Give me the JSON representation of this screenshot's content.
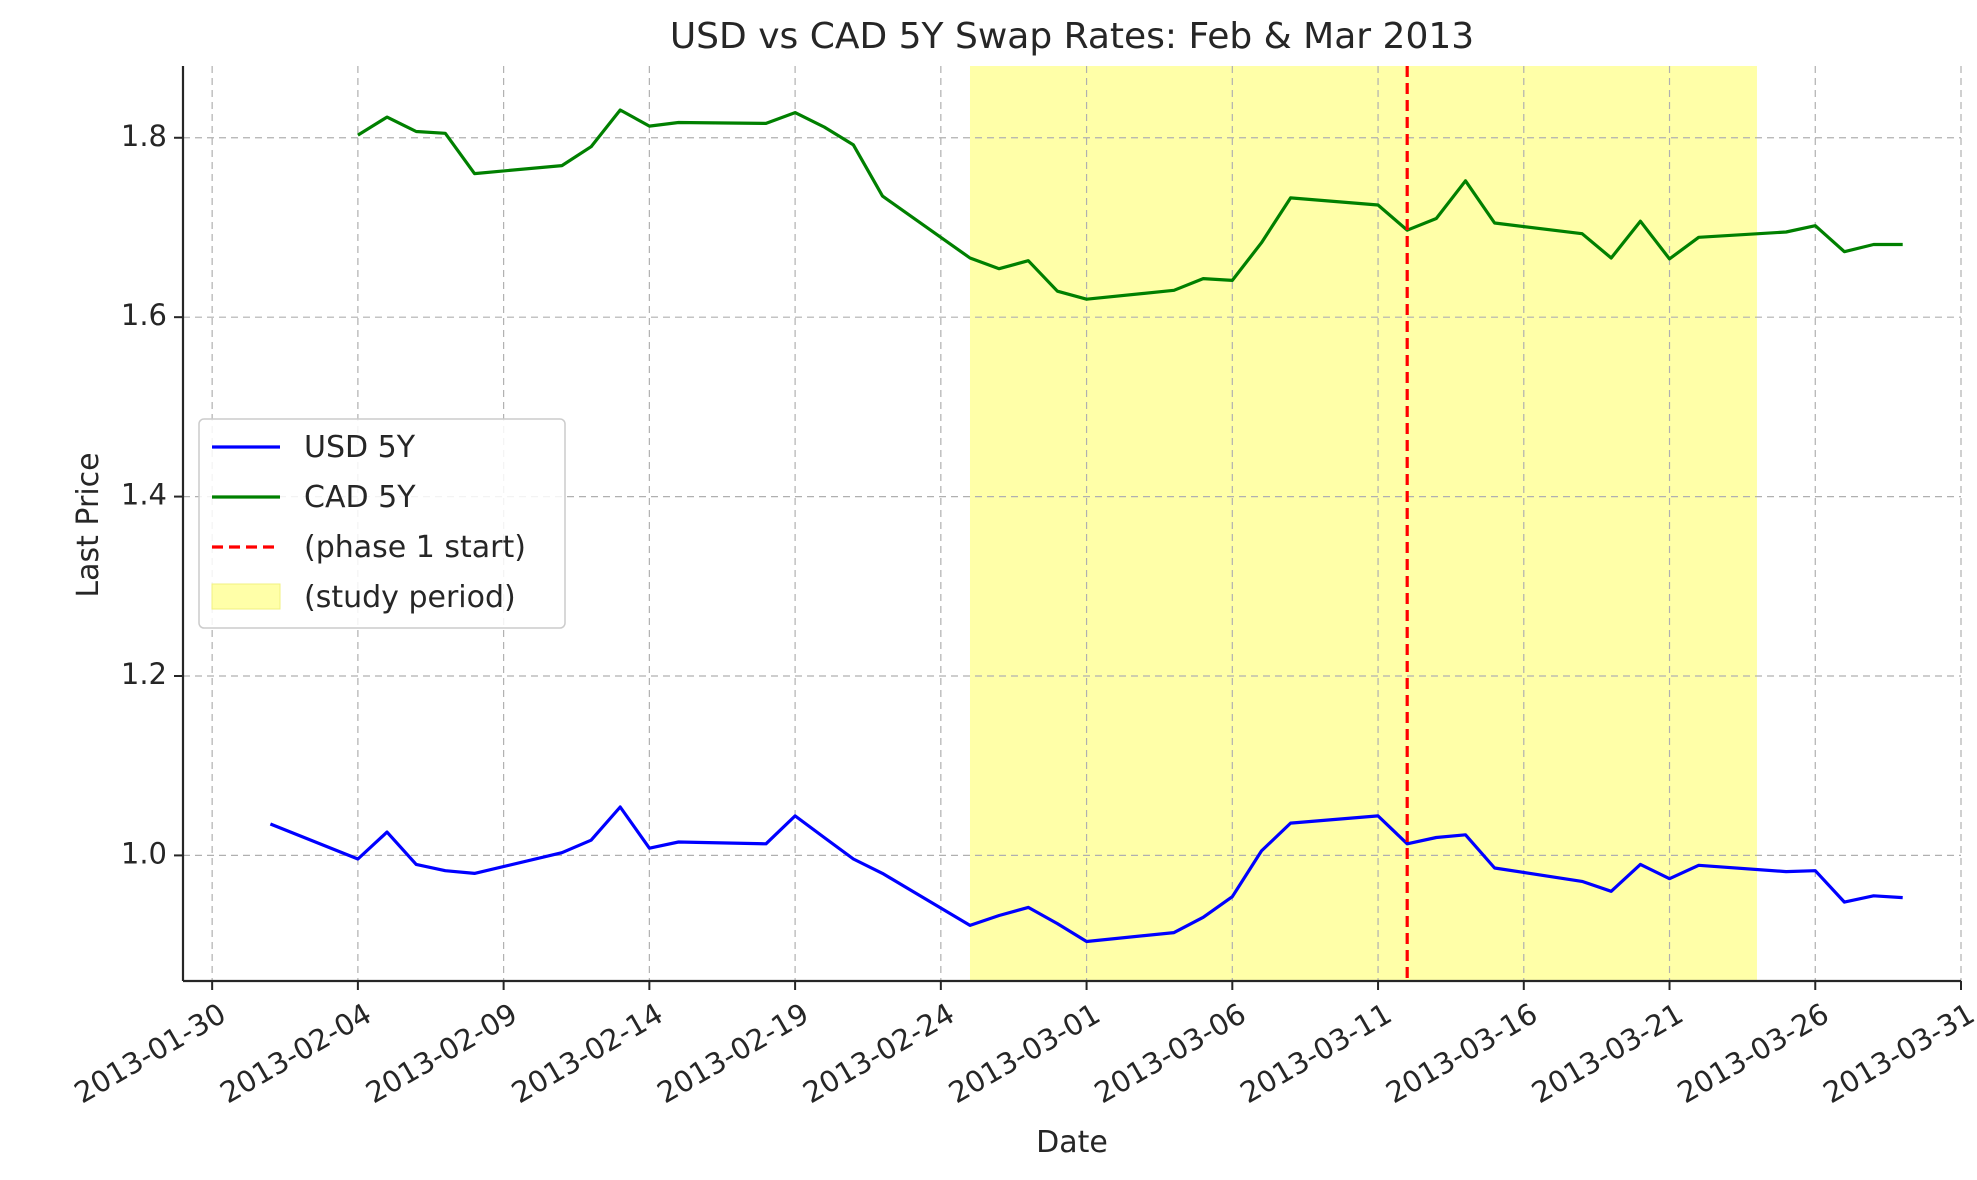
{
  "chart_data": {
    "type": "line",
    "title": "USD vs CAD 5Y Swap Rates: Feb & Mar 2013",
    "xlabel": "Date",
    "ylabel": "Last Price",
    "xlim": [
      "2013-01-29",
      "2013-03-31"
    ],
    "ylim": [
      0.86,
      1.88
    ],
    "x_ticks": [
      "2013-01-30",
      "2013-02-04",
      "2013-02-09",
      "2013-02-14",
      "2013-02-19",
      "2013-02-24",
      "2013-03-01",
      "2013-03-06",
      "2013-03-11",
      "2013-03-16",
      "2013-03-21",
      "2013-03-26",
      "2013-03-31"
    ],
    "y_ticks": [
      1.0,
      1.2,
      1.4,
      1.6,
      1.8
    ],
    "y_tick_labels": [
      "1.0",
      "1.2",
      "1.4",
      "1.6",
      "1.8"
    ],
    "grid": true,
    "legend_position": "center-left",
    "series": [
      {
        "name": "USD 5Y",
        "color": "#0000ff",
        "points": [
          [
            "2013-02-01",
            1.035
          ],
          [
            "2013-02-04",
            0.996
          ],
          [
            "2013-02-05",
            1.026
          ],
          [
            "2013-02-06",
            0.99
          ],
          [
            "2013-02-07",
            0.983
          ],
          [
            "2013-02-08",
            0.98
          ],
          [
            "2013-02-11",
            1.003
          ],
          [
            "2013-02-12",
            1.017
          ],
          [
            "2013-02-13",
            1.054
          ],
          [
            "2013-02-14",
            1.008
          ],
          [
            "2013-02-15",
            1.015
          ],
          [
            "2013-02-18",
            1.013
          ],
          [
            "2013-02-19",
            1.044
          ],
          [
            "2013-02-20",
            1.02
          ],
          [
            "2013-02-21",
            0.996
          ],
          [
            "2013-02-22",
            0.98
          ],
          [
            "2013-02-25",
            0.922
          ],
          [
            "2013-02-26",
            0.933
          ],
          [
            "2013-02-27",
            0.942
          ],
          [
            "2013-02-28",
            0.924
          ],
          [
            "2013-03-01",
            0.904
          ],
          [
            "2013-03-04",
            0.914
          ],
          [
            "2013-03-05",
            0.931
          ],
          [
            "2013-03-06",
            0.954
          ],
          [
            "2013-03-07",
            1.005
          ],
          [
            "2013-03-08",
            1.036
          ],
          [
            "2013-03-11",
            1.044
          ],
          [
            "2013-03-12",
            1.013
          ],
          [
            "2013-03-13",
            1.02
          ],
          [
            "2013-03-14",
            1.023
          ],
          [
            "2013-03-15",
            0.986
          ],
          [
            "2013-03-18",
            0.971
          ],
          [
            "2013-03-19",
            0.96
          ],
          [
            "2013-03-20",
            0.99
          ],
          [
            "2013-03-21",
            0.974
          ],
          [
            "2013-03-22",
            0.989
          ],
          [
            "2013-03-25",
            0.982
          ],
          [
            "2013-03-26",
            0.983
          ],
          [
            "2013-03-27",
            0.948
          ],
          [
            "2013-03-28",
            0.955
          ],
          [
            "2013-03-29",
            0.953
          ]
        ]
      },
      {
        "name": "CAD 5Y",
        "color": "#008000",
        "points": [
          [
            "2013-02-04",
            1.803
          ],
          [
            "2013-02-05",
            1.823
          ],
          [
            "2013-02-06",
            1.807
          ],
          [
            "2013-02-07",
            1.805
          ],
          [
            "2013-02-08",
            1.76
          ],
          [
            "2013-02-11",
            1.769
          ],
          [
            "2013-02-12",
            1.79
          ],
          [
            "2013-02-13",
            1.831
          ],
          [
            "2013-02-14",
            1.813
          ],
          [
            "2013-02-15",
            1.817
          ],
          [
            "2013-02-18",
            1.816
          ],
          [
            "2013-02-19",
            1.828
          ],
          [
            "2013-02-20",
            1.812
          ],
          [
            "2013-02-21",
            1.792
          ],
          [
            "2013-02-22",
            1.735
          ],
          [
            "2013-02-25",
            1.666
          ],
          [
            "2013-02-26",
            1.654
          ],
          [
            "2013-02-27",
            1.663
          ],
          [
            "2013-02-28",
            1.629
          ],
          [
            "2013-03-01",
            1.62
          ],
          [
            "2013-03-04",
            1.63
          ],
          [
            "2013-03-05",
            1.643
          ],
          [
            "2013-03-06",
            1.641
          ],
          [
            "2013-03-07",
            1.683
          ],
          [
            "2013-03-08",
            1.733
          ],
          [
            "2013-03-11",
            1.725
          ],
          [
            "2013-03-12",
            1.697
          ],
          [
            "2013-03-13",
            1.71
          ],
          [
            "2013-03-14",
            1.752
          ],
          [
            "2013-03-15",
            1.705
          ],
          [
            "2013-03-18",
            1.693
          ],
          [
            "2013-03-19",
            1.666
          ],
          [
            "2013-03-20",
            1.707
          ],
          [
            "2013-03-21",
            1.665
          ],
          [
            "2013-03-22",
            1.689
          ],
          [
            "2013-03-25",
            1.695
          ],
          [
            "2013-03-26",
            1.702
          ],
          [
            "2013-03-27",
            1.673
          ],
          [
            "2013-03-28",
            1.681
          ],
          [
            "2013-03-29",
            1.681
          ]
        ]
      }
    ],
    "vertical_line": {
      "label": "(phase 1 start)",
      "x": "2013-03-12",
      "color": "#ff0000",
      "style": "dashed"
    },
    "shaded_region": {
      "label": "(study period)",
      "x_start": "2013-02-25",
      "x_end": "2013-03-24",
      "color": "#ffff99"
    }
  }
}
